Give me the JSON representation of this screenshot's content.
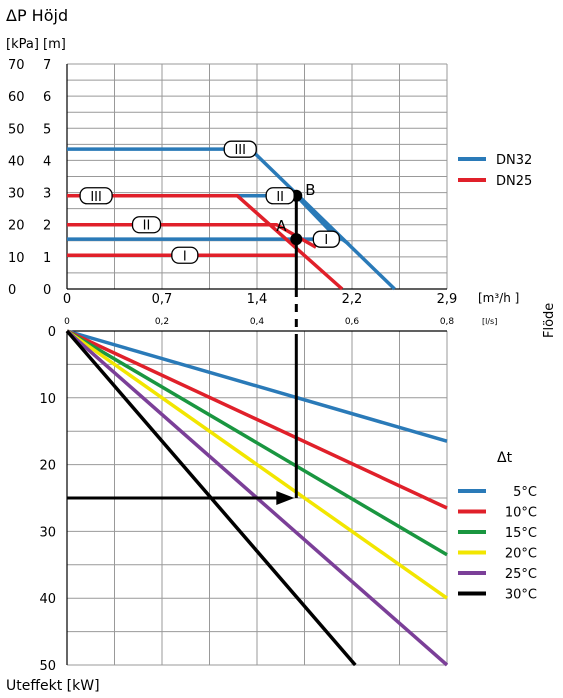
{
  "chart_data": [
    {
      "type": "line",
      "title": "ΔP Höjd",
      "ylabel": "[kPa] [m]",
      "y_ticks_kpa": [
        "70",
        "60",
        "50",
        "40",
        "30",
        "20",
        "10",
        "0"
      ],
      "y_ticks_m": [
        "7",
        "6",
        "5",
        "4",
        "3",
        "2",
        "1",
        "0"
      ],
      "ylim": [
        0,
        70
      ],
      "x_ticks_m3h": [
        "0",
        "0,7",
        "1,4",
        "2,2",
        "2,9"
      ],
      "x_ticks_ls": [
        "0",
        "0,2",
        "0,4",
        "0,6",
        "0,8"
      ],
      "xlabel_m3h": "[m³/h ]",
      "xlabel_ls": "[l/s]",
      "xlim": [
        0,
        2.9
      ],
      "flow_label": "Flöde",
      "grid": true,
      "legend_position": "right",
      "series": [
        {
          "name": "DN32",
          "color": "#2a7ab8",
          "curves": [
            {
              "speed": "III",
              "x": [
                0,
                1.4,
                2.5
              ],
              "y": [
                43.5,
                43.5,
                0
              ]
            },
            {
              "speed": "II",
              "x": [
                0,
                1.75,
                2.08
              ],
              "y": [
                29,
                29,
                15
              ]
            },
            {
              "speed": "I",
              "x": [
                0,
                2.1,
                2.15
              ],
              "y": [
                15.5,
                15.5,
                14
              ]
            }
          ]
        },
        {
          "name": "DN25",
          "color": "#e0202a",
          "curves": [
            {
              "speed": "III",
              "x": [
                0,
                1.3,
                2.1
              ],
              "y": [
                29,
                29,
                0
              ]
            },
            {
              "speed": "II",
              "x": [
                0,
                1.6,
                1.9
              ],
              "y": [
                20,
                20,
                13
              ]
            },
            {
              "speed": "I",
              "x": [
                0,
                1.75
              ],
              "y": [
                10.5,
                10.5
              ]
            }
          ]
        }
      ],
      "speed_labels": [
        {
          "text": "III",
          "x": 1.2,
          "y": 43.5
        },
        {
          "text": "III",
          "x": 0.1,
          "y": 29
        },
        {
          "text": "II",
          "x": 1.52,
          "y": 29
        },
        {
          "text": "II",
          "x": 0.5,
          "y": 20
        },
        {
          "text": "I",
          "x": 1.88,
          "y": 15.5
        },
        {
          "text": "I",
          "x": 0.8,
          "y": 10.5
        }
      ],
      "points": [
        {
          "label": "A",
          "x": 1.75,
          "y": 15.5
        },
        {
          "label": "B",
          "x": 1.75,
          "y": 29
        }
      ],
      "reference_flow": 1.75
    },
    {
      "type": "line",
      "ylabel": "Uteffekt [kW]",
      "y_ticks": [
        "0",
        "10",
        "20",
        "30",
        "40",
        "50"
      ],
      "ylim": [
        0,
        50
      ],
      "xlim": [
        0,
        2.9
      ],
      "legend_title": "Δt",
      "legend_position": "right",
      "grid": true,
      "series": [
        {
          "name": "5°C",
          "color": "#2a7ab8",
          "x": [
            0,
            2.9
          ],
          "y": [
            0,
            16.5
          ]
        },
        {
          "name": "10°C",
          "color": "#e0202a",
          "x": [
            0,
            2.9
          ],
          "y": [
            0,
            26.5
          ]
        },
        {
          "name": "15°C",
          "color": "#1a9640",
          "x": [
            0,
            2.9
          ],
          "y": [
            0,
            33.5
          ]
        },
        {
          "name": "20°C",
          "color": "#f2e600",
          "x": [
            0,
            2.9
          ],
          "y": [
            0,
            40
          ]
        },
        {
          "name": "25°C",
          "color": "#7b3f98",
          "x": [
            0,
            2.9
          ],
          "y": [
            0,
            50
          ]
        },
        {
          "name": "30°C",
          "color": "#000000",
          "x": [
            0,
            2.2
          ],
          "y": [
            0,
            50
          ]
        }
      ],
      "reference": {
        "x": 1.75,
        "y": 25
      }
    }
  ]
}
